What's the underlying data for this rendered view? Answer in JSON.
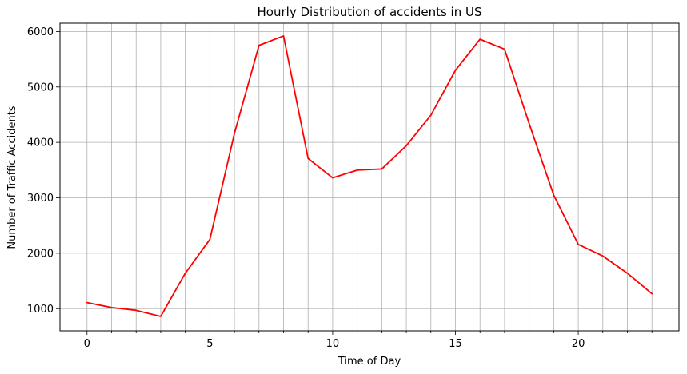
{
  "chart_data": {
    "type": "line",
    "title": "Hourly Distribution of accidents in US",
    "xlabel": "Time of Day",
    "ylabel": "Number of Traffic Accidents",
    "x": [
      0,
      1,
      2,
      3,
      4,
      5,
      6,
      7,
      8,
      9,
      10,
      11,
      12,
      13,
      14,
      15,
      16,
      17,
      18,
      19,
      20,
      21,
      22,
      23
    ],
    "series": [
      {
        "values": [
          1110,
          1020,
          970,
          860,
          1640,
          2250,
          4160,
          5750,
          5920,
          3710,
          3360,
          3500,
          3520,
          3940,
          4490,
          5300,
          5860,
          5680,
          4340,
          3050,
          2160,
          1950,
          1640,
          1270
        ]
      }
    ],
    "xlim": [
      -1.1,
      24.1
    ],
    "ylim": [
      600,
      6150
    ],
    "x_major_ticks": [
      0,
      5,
      10,
      15,
      20
    ],
    "x_major_tick_labels": [
      "0",
      "5",
      "10",
      "15",
      "20"
    ],
    "x_minor_ticks": [
      0,
      1,
      2,
      3,
      4,
      5,
      6,
      7,
      8,
      9,
      10,
      11,
      12,
      13,
      14,
      15,
      16,
      17,
      18,
      19,
      20,
      21,
      22,
      23
    ],
    "y_ticks": [
      1000,
      2000,
      3000,
      4000,
      5000,
      6000
    ],
    "y_tick_labels": [
      "1000",
      "2000",
      "3000",
      "4000",
      "5000",
      "6000"
    ],
    "grid": true,
    "line_color": "#ff0000",
    "grid_color": "#b0b0b0"
  }
}
